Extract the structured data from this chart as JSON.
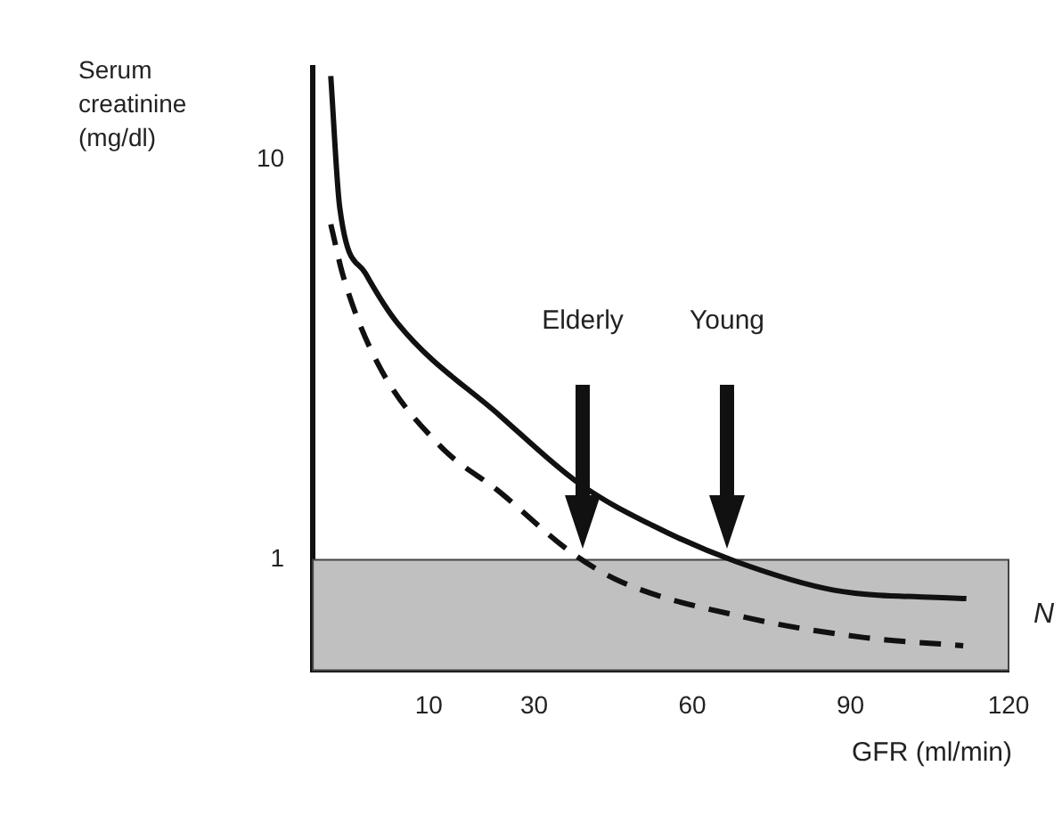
{
  "chart_data": {
    "type": "line",
    "ylabel": "Serum creatinine (mg/dl)",
    "xlabel": "GFR (ml/min)",
    "xlim": [
      -12,
      120
    ],
    "xticks": [
      10,
      30,
      60,
      90,
      120
    ],
    "ylim": [
      0.53,
      17
    ],
    "yticks": [
      1,
      10
    ],
    "log": "y",
    "grid": false,
    "legend": false,
    "marker": "none",
    "series": [
      {
        "color": "#111111",
        "line_style": "solid",
        "x": [
          -8.6,
          -6.9,
          -2,
          4.1,
          23.4,
          38.6,
          52.4,
          68.3,
          86.9,
          112
        ],
        "values": [
          16.2,
          7.6,
          5.2,
          3.9,
          2.3,
          1.55,
          1.22,
          0.99,
          0.84,
          0.8
        ]
      },
      {
        "color": "#111111",
        "line_style": "dashed",
        "x": [
          -8.6,
          -6.2,
          0.3,
          12.1,
          23.4,
          37.2,
          46.6,
          69.7,
          92.4,
          111.4
        ],
        "values": [
          6.9,
          5.1,
          3.1,
          1.93,
          1.48,
          1.04,
          0.88,
          0.72,
          0.64,
          0.61
        ]
      }
    ],
    "bands": [
      {
        "axis": "y",
        "from": 0.53,
        "to": 1,
        "label": "N",
        "color": "#c0c0c0"
      }
    ],
    "annotations": [
      "Elderly",
      "Young"
    ]
  }
}
